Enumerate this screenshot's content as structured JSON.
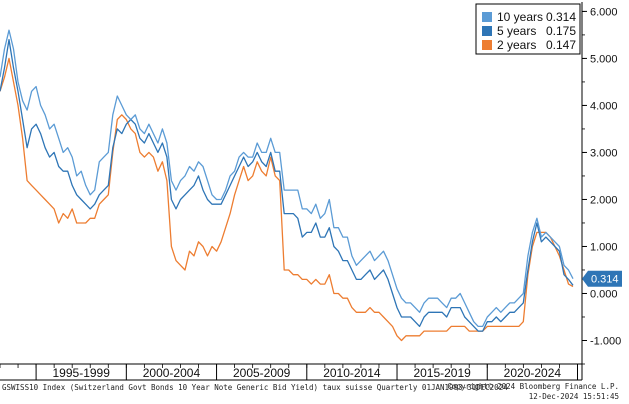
{
  "footer": {
    "description": "GSWISS10 Index (Switzerland Govt Bonds 10 Year Note Generic Bid Yield) taux suisse  Quarterly 01JAN1993-31DEC2024",
    "copyright": "Copyright© 2024 Bloomberg Finance L.P.",
    "timestamp": "12-Dec-2024 15:51:45"
  },
  "current_value_label": "0.314",
  "chart_data": {
    "type": "line",
    "title": "",
    "xlabel": "",
    "ylabel": "",
    "x_tick_labels": [
      "1995-1999",
      "2000-2004",
      "2005-2009",
      "2010-2014",
      "2015-2019",
      "2020-2024"
    ],
    "y_tick_labels": [
      "-1.000",
      "0.000",
      "1.000",
      "2.000",
      "3.000",
      "4.000",
      "5.000",
      "6.000"
    ],
    "ylim": [
      -1.5,
      6.2
    ],
    "xlim": [
      1993.0,
      2025.25
    ],
    "grid": false,
    "legend_position": "top-right",
    "x": [
      1993.0,
      1993.25,
      1993.5,
      1993.75,
      1994.0,
      1994.25,
      1994.5,
      1994.75,
      1995.0,
      1995.25,
      1995.5,
      1995.75,
      1996.0,
      1996.25,
      1996.5,
      1996.75,
      1997.0,
      1997.25,
      1997.5,
      1997.75,
      1998.0,
      1998.25,
      1998.5,
      1998.75,
      1999.0,
      1999.25,
      1999.5,
      1999.75,
      2000.0,
      2000.25,
      2000.5,
      2000.75,
      2001.0,
      2001.25,
      2001.5,
      2001.75,
      2002.0,
      2002.25,
      2002.5,
      2002.75,
      2003.0,
      2003.25,
      2003.5,
      2003.75,
      2004.0,
      2004.25,
      2004.5,
      2004.75,
      2005.0,
      2005.25,
      2005.5,
      2005.75,
      2006.0,
      2006.25,
      2006.5,
      2006.75,
      2007.0,
      2007.25,
      2007.5,
      2007.75,
      2008.0,
      2008.25,
      2008.5,
      2008.75,
      2009.0,
      2009.25,
      2009.5,
      2009.75,
      2010.0,
      2010.25,
      2010.5,
      2010.75,
      2011.0,
      2011.25,
      2011.5,
      2011.75,
      2012.0,
      2012.25,
      2012.5,
      2012.75,
      2013.0,
      2013.25,
      2013.5,
      2013.75,
      2014.0,
      2014.25,
      2014.5,
      2014.75,
      2015.0,
      2015.25,
      2015.5,
      2015.75,
      2016.0,
      2016.25,
      2016.5,
      2016.75,
      2017.0,
      2017.25,
      2017.5,
      2017.75,
      2018.0,
      2018.25,
      2018.5,
      2018.75,
      2019.0,
      2019.25,
      2019.5,
      2019.75,
      2020.0,
      2020.25,
      2020.5,
      2020.75,
      2021.0,
      2021.25,
      2021.5,
      2021.75,
      2022.0,
      2022.25,
      2022.5,
      2022.75,
      2023.0,
      2023.25,
      2023.5,
      2023.75,
      2024.0,
      2024.25,
      2024.5,
      2024.75
    ],
    "series": [
      {
        "name": "10 years",
        "last": "0.314",
        "color": "#5b9bd5",
        "values": [
          4.6,
          5.2,
          5.6,
          5.2,
          4.5,
          4.1,
          3.9,
          4.3,
          4.4,
          4.0,
          3.8,
          3.5,
          3.6,
          3.3,
          3.0,
          3.1,
          2.9,
          2.5,
          2.6,
          2.3,
          2.1,
          2.2,
          2.8,
          2.9,
          3.0,
          3.8,
          4.2,
          4.0,
          3.8,
          3.7,
          3.8,
          3.5,
          3.4,
          3.6,
          3.4,
          3.2,
          3.5,
          3.2,
          2.4,
          2.2,
          2.4,
          2.5,
          2.7,
          2.6,
          2.8,
          2.7,
          2.4,
          2.1,
          2.0,
          2.0,
          2.2,
          2.5,
          2.6,
          2.9,
          3.0,
          2.9,
          2.9,
          3.2,
          3.0,
          3.0,
          3.3,
          3.0,
          3.0,
          2.2,
          2.2,
          2.2,
          2.2,
          1.8,
          1.8,
          1.7,
          1.9,
          1.6,
          1.7,
          2.0,
          1.4,
          1.4,
          1.2,
          1.2,
          0.8,
          0.6,
          0.7,
          0.8,
          0.9,
          0.7,
          0.8,
          0.9,
          0.7,
          0.4,
          0.1,
          -0.1,
          -0.2,
          -0.2,
          -0.3,
          -0.4,
          -0.2,
          -0.1,
          -0.1,
          -0.1,
          -0.2,
          -0.3,
          -0.1,
          -0.1,
          0.0,
          -0.2,
          -0.4,
          -0.6,
          -0.7,
          -0.7,
          -0.5,
          -0.4,
          -0.3,
          -0.4,
          -0.3,
          -0.2,
          -0.2,
          -0.1,
          0.0,
          0.8,
          1.3,
          1.6,
          1.2,
          1.3,
          1.2,
          1.1,
          1.0,
          0.6,
          0.5,
          0.314
        ]
      },
      {
        "name": "5 years",
        "last": "0.175",
        "color": "#2e75b6",
        "values": [
          4.3,
          4.8,
          5.4,
          4.8,
          4.3,
          3.7,
          3.1,
          3.5,
          3.6,
          3.4,
          3.1,
          2.9,
          3.0,
          2.7,
          2.6,
          2.6,
          2.3,
          2.1,
          2.0,
          1.9,
          1.8,
          1.9,
          2.1,
          2.2,
          2.3,
          3.1,
          3.5,
          3.4,
          3.6,
          3.7,
          3.6,
          3.3,
          3.2,
          3.4,
          3.2,
          3.0,
          3.2,
          2.9,
          2.0,
          1.8,
          2.0,
          2.1,
          2.2,
          2.3,
          2.5,
          2.2,
          2.0,
          1.9,
          1.9,
          1.9,
          2.1,
          2.3,
          2.5,
          2.7,
          2.9,
          2.7,
          2.8,
          3.0,
          2.8,
          2.7,
          3.0,
          2.6,
          2.6,
          1.7,
          1.7,
          1.7,
          1.6,
          1.2,
          1.3,
          1.3,
          1.5,
          1.2,
          1.2,
          1.4,
          1.0,
          0.9,
          0.7,
          0.7,
          0.5,
          0.3,
          0.3,
          0.4,
          0.5,
          0.3,
          0.4,
          0.5,
          0.3,
          0.0,
          -0.3,
          -0.5,
          -0.5,
          -0.5,
          -0.6,
          -0.7,
          -0.5,
          -0.4,
          -0.4,
          -0.4,
          -0.4,
          -0.5,
          -0.3,
          -0.3,
          -0.3,
          -0.5,
          -0.6,
          -0.7,
          -0.8,
          -0.8,
          -0.6,
          -0.6,
          -0.5,
          -0.6,
          -0.5,
          -0.4,
          -0.4,
          -0.3,
          -0.2,
          0.5,
          1.1,
          1.5,
          1.1,
          1.2,
          1.1,
          1.0,
          0.9,
          0.4,
          0.3,
          0.175
        ]
      },
      {
        "name": "2 years",
        "last": "0.147",
        "color": "#ed7d31",
        "values": [
          4.3,
          4.6,
          5.0,
          4.5,
          4.0,
          3.3,
          2.4,
          2.3,
          2.2,
          2.1,
          2.0,
          1.9,
          1.8,
          1.5,
          1.7,
          1.6,
          1.8,
          1.5,
          1.5,
          1.5,
          1.6,
          1.6,
          1.9,
          2.0,
          2.1,
          3.0,
          3.7,
          3.8,
          3.7,
          3.5,
          3.4,
          3.0,
          2.9,
          3.0,
          2.9,
          2.6,
          2.8,
          2.4,
          1.0,
          0.7,
          0.6,
          0.5,
          0.9,
          0.8,
          1.1,
          1.0,
          0.8,
          1.0,
          0.9,
          1.1,
          1.4,
          1.7,
          2.1,
          2.4,
          2.7,
          2.4,
          2.5,
          2.8,
          2.6,
          2.5,
          2.9,
          2.5,
          2.4,
          0.5,
          0.5,
          0.4,
          0.4,
          0.3,
          0.3,
          0.2,
          0.3,
          0.2,
          0.2,
          0.4,
          0.0,
          0.0,
          -0.1,
          -0.1,
          -0.3,
          -0.4,
          -0.4,
          -0.4,
          -0.3,
          -0.4,
          -0.4,
          -0.5,
          -0.6,
          -0.7,
          -0.9,
          -1.0,
          -0.9,
          -0.9,
          -0.9,
          -0.9,
          -0.8,
          -0.8,
          -0.8,
          -0.8,
          -0.8,
          -0.8,
          -0.7,
          -0.7,
          -0.7,
          -0.7,
          -0.8,
          -0.8,
          -0.8,
          -0.8,
          -0.7,
          -0.7,
          -0.7,
          -0.7,
          -0.7,
          -0.7,
          -0.7,
          -0.7,
          -0.6,
          0.4,
          1.0,
          1.3,
          1.3,
          1.3,
          1.2,
          1.0,
          0.8,
          0.5,
          0.2,
          0.147
        ]
      }
    ]
  },
  "colors": {
    "legend_background": "#ffffff",
    "legend_border": "#000000",
    "current_value_box": "#2e75b6",
    "current_value_text": "#ffffff",
    "axis": "#000000"
  }
}
